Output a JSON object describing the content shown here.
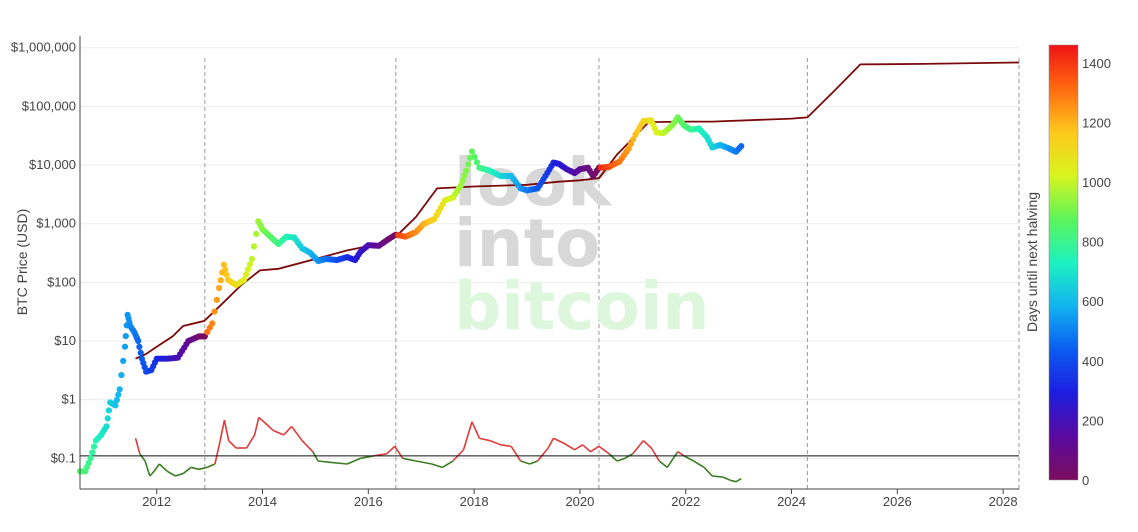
{
  "chart_data": {
    "type": "scatter",
    "ylabel": "BTC Price (USD)",
    "yscale": "log",
    "ylim": [
      0.03,
      1600000
    ],
    "xlim": [
      2010.55,
      2028.3
    ],
    "y_ticks": [
      {
        "value": 1000000,
        "label": "$1,000,000"
      },
      {
        "value": 100000,
        "label": "$100,000"
      },
      {
        "value": 10000,
        "label": "$10,000"
      },
      {
        "value": 1000,
        "label": "$1,000"
      },
      {
        "value": 100,
        "label": "$100"
      },
      {
        "value": 10,
        "label": "$10"
      },
      {
        "value": 1,
        "label": "$1"
      },
      {
        "value": 0.1,
        "label": "$0.1"
      }
    ],
    "x_ticks": [
      {
        "value": 2012,
        "label": "2012"
      },
      {
        "value": 2014,
        "label": "2014"
      },
      {
        "value": 2016,
        "label": "2016"
      },
      {
        "value": 2018,
        "label": "2018"
      },
      {
        "value": 2020,
        "label": "2020"
      },
      {
        "value": 2022,
        "label": "2022"
      },
      {
        "value": 2024,
        "label": "2024"
      },
      {
        "value": 2026,
        "label": "2026"
      },
      {
        "value": 2028,
        "label": "2028"
      }
    ],
    "halving_lines": [
      2012.91,
      2016.52,
      2020.36,
      2024.3,
      2028.3
    ],
    "oscillator_threshold": 0.11,
    "colorbar": {
      "title": "Days until next halving",
      "min": 0,
      "max": 1460,
      "ticks": [
        0,
        200,
        400,
        600,
        800,
        1000,
        1200,
        1400
      ],
      "colors": [
        "#7b0d5e",
        "#5a0aa0",
        "#1d1de0",
        "#0b5cf0",
        "#12b3f0",
        "#1df2c0",
        "#5df55a",
        "#d8f51d",
        "#ffc81d",
        "#ff6a10",
        "#f01313"
      ]
    },
    "price_series": [
      {
        "x": 2010.55,
        "y": 0.06
      },
      {
        "x": 2010.65,
        "y": 0.06
      },
      {
        "x": 2010.75,
        "y": 0.1
      },
      {
        "x": 2010.85,
        "y": 0.2
      },
      {
        "x": 2010.95,
        "y": 0.25
      },
      {
        "x": 2011.05,
        "y": 0.35
      },
      {
        "x": 2011.12,
        "y": 0.9
      },
      {
        "x": 2011.22,
        "y": 0.8
      },
      {
        "x": 2011.3,
        "y": 1.5
      },
      {
        "x": 2011.4,
        "y": 8
      },
      {
        "x": 2011.45,
        "y": 28
      },
      {
        "x": 2011.5,
        "y": 18
      },
      {
        "x": 2011.58,
        "y": 14
      },
      {
        "x": 2011.65,
        "y": 10
      },
      {
        "x": 2011.72,
        "y": 5
      },
      {
        "x": 2011.8,
        "y": 3
      },
      {
        "x": 2011.9,
        "y": 3.2
      },
      {
        "x": 2012.0,
        "y": 5
      },
      {
        "x": 2012.2,
        "y": 5
      },
      {
        "x": 2012.4,
        "y": 5.2
      },
      {
        "x": 2012.6,
        "y": 10
      },
      {
        "x": 2012.8,
        "y": 12
      },
      {
        "x": 2012.91,
        "y": 12
      },
      {
        "x": 2013.05,
        "y": 20
      },
      {
        "x": 2013.18,
        "y": 80
      },
      {
        "x": 2013.27,
        "y": 200
      },
      {
        "x": 2013.35,
        "y": 110
      },
      {
        "x": 2013.5,
        "y": 90
      },
      {
        "x": 2013.65,
        "y": 110
      },
      {
        "x": 2013.8,
        "y": 250
      },
      {
        "x": 2013.92,
        "y": 1100
      },
      {
        "x": 2014.0,
        "y": 800
      },
      {
        "x": 2014.15,
        "y": 600
      },
      {
        "x": 2014.3,
        "y": 450
      },
      {
        "x": 2014.45,
        "y": 600
      },
      {
        "x": 2014.6,
        "y": 580
      },
      {
        "x": 2014.75,
        "y": 380
      },
      {
        "x": 2014.9,
        "y": 320
      },
      {
        "x": 2015.05,
        "y": 230
      },
      {
        "x": 2015.2,
        "y": 250
      },
      {
        "x": 2015.4,
        "y": 240
      },
      {
        "x": 2015.6,
        "y": 270
      },
      {
        "x": 2015.75,
        "y": 240
      },
      {
        "x": 2015.85,
        "y": 330
      },
      {
        "x": 2016.0,
        "y": 430
      },
      {
        "x": 2016.2,
        "y": 420
      },
      {
        "x": 2016.4,
        "y": 560
      },
      {
        "x": 2016.52,
        "y": 650
      },
      {
        "x": 2016.7,
        "y": 600
      },
      {
        "x": 2016.9,
        "y": 720
      },
      {
        "x": 2017.05,
        "y": 1000
      },
      {
        "x": 2017.25,
        "y": 1200
      },
      {
        "x": 2017.45,
        "y": 2500
      },
      {
        "x": 2017.6,
        "y": 2800
      },
      {
        "x": 2017.75,
        "y": 4500
      },
      {
        "x": 2017.85,
        "y": 8000
      },
      {
        "x": 2017.96,
        "y": 17000
      },
      {
        "x": 2018.1,
        "y": 9000
      },
      {
        "x": 2018.3,
        "y": 8000
      },
      {
        "x": 2018.5,
        "y": 6500
      },
      {
        "x": 2018.7,
        "y": 6500
      },
      {
        "x": 2018.88,
        "y": 4000
      },
      {
        "x": 2019.0,
        "y": 3700
      },
      {
        "x": 2019.2,
        "y": 4000
      },
      {
        "x": 2019.35,
        "y": 6500
      },
      {
        "x": 2019.5,
        "y": 11000
      },
      {
        "x": 2019.6,
        "y": 10500
      },
      {
        "x": 2019.75,
        "y": 8500
      },
      {
        "x": 2019.9,
        "y": 7300
      },
      {
        "x": 2020.0,
        "y": 8500
      },
      {
        "x": 2020.15,
        "y": 9000
      },
      {
        "x": 2020.25,
        "y": 6500
      },
      {
        "x": 2020.36,
        "y": 9000
      },
      {
        "x": 2020.55,
        "y": 9300
      },
      {
        "x": 2020.75,
        "y": 11500
      },
      {
        "x": 2020.92,
        "y": 19000
      },
      {
        "x": 2021.05,
        "y": 33000
      },
      {
        "x": 2021.2,
        "y": 56000
      },
      {
        "x": 2021.35,
        "y": 58000
      },
      {
        "x": 2021.45,
        "y": 36000
      },
      {
        "x": 2021.58,
        "y": 35000
      },
      {
        "x": 2021.75,
        "y": 48000
      },
      {
        "x": 2021.85,
        "y": 65000
      },
      {
        "x": 2021.97,
        "y": 47000
      },
      {
        "x": 2022.1,
        "y": 40000
      },
      {
        "x": 2022.25,
        "y": 42000
      },
      {
        "x": 2022.4,
        "y": 30000
      },
      {
        "x": 2022.5,
        "y": 20000
      },
      {
        "x": 2022.65,
        "y": 22000
      },
      {
        "x": 2022.8,
        "y": 19500
      },
      {
        "x": 2022.95,
        "y": 16800
      },
      {
        "x": 2023.05,
        "y": 21000
      }
    ],
    "stock_to_flow_series": [
      {
        "x": 2011.6,
        "y": 5
      },
      {
        "x": 2011.8,
        "y": 6
      },
      {
        "x": 2012.0,
        "y": 8
      },
      {
        "x": 2012.3,
        "y": 12
      },
      {
        "x": 2012.5,
        "y": 18
      },
      {
        "x": 2012.9,
        "y": 22
      },
      {
        "x": 2013.2,
        "y": 40
      },
      {
        "x": 2013.6,
        "y": 90
      },
      {
        "x": 2013.95,
        "y": 160
      },
      {
        "x": 2014.3,
        "y": 170
      },
      {
        "x": 2015.0,
        "y": 250
      },
      {
        "x": 2015.6,
        "y": 350
      },
      {
        "x": 2016.2,
        "y": 450
      },
      {
        "x": 2016.52,
        "y": 600
      },
      {
        "x": 2016.9,
        "y": 1300
      },
      {
        "x": 2017.3,
        "y": 4000
      },
      {
        "x": 2018.0,
        "y": 4300
      },
      {
        "x": 2019.0,
        "y": 4600
      },
      {
        "x": 2019.6,
        "y": 5200
      },
      {
        "x": 2020.0,
        "y": 5500
      },
      {
        "x": 2020.36,
        "y": 6000
      },
      {
        "x": 2020.7,
        "y": 15000
      },
      {
        "x": 2021.3,
        "y": 54000
      },
      {
        "x": 2022.0,
        "y": 55000
      },
      {
        "x": 2022.5,
        "y": 55000
      },
      {
        "x": 2024.0,
        "y": 62000
      },
      {
        "x": 2024.3,
        "y": 65000
      },
      {
        "x": 2024.8,
        "y": 180000
      },
      {
        "x": 2025.3,
        "y": 520000
      },
      {
        "x": 2026.5,
        "y": 530000
      },
      {
        "x": 2028.3,
        "y": 560000
      }
    ],
    "oscillator_series": [
      {
        "x": 2011.6,
        "y": 0.22
      },
      {
        "x": 2011.68,
        "y": 0.12
      },
      {
        "x": 2011.78,
        "y": 0.09
      },
      {
        "x": 2011.87,
        "y": 0.05
      },
      {
        "x": 2011.95,
        "y": 0.06
      },
      {
        "x": 2012.05,
        "y": 0.08
      },
      {
        "x": 2012.2,
        "y": 0.06
      },
      {
        "x": 2012.35,
        "y": 0.05
      },
      {
        "x": 2012.5,
        "y": 0.055
      },
      {
        "x": 2012.65,
        "y": 0.07
      },
      {
        "x": 2012.8,
        "y": 0.065
      },
      {
        "x": 2012.95,
        "y": 0.07
      },
      {
        "x": 2013.1,
        "y": 0.08
      },
      {
        "x": 2013.2,
        "y": 0.2
      },
      {
        "x": 2013.28,
        "y": 0.45
      },
      {
        "x": 2013.36,
        "y": 0.2
      },
      {
        "x": 2013.5,
        "y": 0.15
      },
      {
        "x": 2013.7,
        "y": 0.15
      },
      {
        "x": 2013.85,
        "y": 0.25
      },
      {
        "x": 2013.93,
        "y": 0.5
      },
      {
        "x": 2014.05,
        "y": 0.4
      },
      {
        "x": 2014.2,
        "y": 0.3
      },
      {
        "x": 2014.4,
        "y": 0.25
      },
      {
        "x": 2014.55,
        "y": 0.35
      },
      {
        "x": 2014.75,
        "y": 0.2
      },
      {
        "x": 2014.95,
        "y": 0.13
      },
      {
        "x": 2015.05,
        "y": 0.09
      },
      {
        "x": 2015.3,
        "y": 0.085
      },
      {
        "x": 2015.6,
        "y": 0.08
      },
      {
        "x": 2015.85,
        "y": 0.1
      },
      {
        "x": 2016.1,
        "y": 0.11
      },
      {
        "x": 2016.35,
        "y": 0.12
      },
      {
        "x": 2016.5,
        "y": 0.16
      },
      {
        "x": 2016.65,
        "y": 0.1
      },
      {
        "x": 2016.9,
        "y": 0.09
      },
      {
        "x": 2017.2,
        "y": 0.08
      },
      {
        "x": 2017.4,
        "y": 0.07
      },
      {
        "x": 2017.6,
        "y": 0.09
      },
      {
        "x": 2017.8,
        "y": 0.14
      },
      {
        "x": 2017.96,
        "y": 0.42
      },
      {
        "x": 2018.1,
        "y": 0.22
      },
      {
        "x": 2018.3,
        "y": 0.2
      },
      {
        "x": 2018.5,
        "y": 0.17
      },
      {
        "x": 2018.7,
        "y": 0.16
      },
      {
        "x": 2018.88,
        "y": 0.09
      },
      {
        "x": 2019.05,
        "y": 0.08
      },
      {
        "x": 2019.2,
        "y": 0.09
      },
      {
        "x": 2019.4,
        "y": 0.15
      },
      {
        "x": 2019.5,
        "y": 0.22
      },
      {
        "x": 2019.7,
        "y": 0.18
      },
      {
        "x": 2019.9,
        "y": 0.14
      },
      {
        "x": 2020.05,
        "y": 0.17
      },
      {
        "x": 2020.2,
        "y": 0.13
      },
      {
        "x": 2020.36,
        "y": 0.16
      },
      {
        "x": 2020.55,
        "y": 0.12
      },
      {
        "x": 2020.7,
        "y": 0.09
      },
      {
        "x": 2020.85,
        "y": 0.1
      },
      {
        "x": 2021.0,
        "y": 0.12
      },
      {
        "x": 2021.2,
        "y": 0.2
      },
      {
        "x": 2021.35,
        "y": 0.15
      },
      {
        "x": 2021.5,
        "y": 0.09
      },
      {
        "x": 2021.65,
        "y": 0.07
      },
      {
        "x": 2021.85,
        "y": 0.13
      },
      {
        "x": 2021.97,
        "y": 0.11
      },
      {
        "x": 2022.15,
        "y": 0.09
      },
      {
        "x": 2022.35,
        "y": 0.07
      },
      {
        "x": 2022.5,
        "y": 0.05
      },
      {
        "x": 2022.7,
        "y": 0.048
      },
      {
        "x": 2022.85,
        "y": 0.042
      },
      {
        "x": 2022.95,
        "y": 0.04
      },
      {
        "x": 2023.05,
        "y": 0.045
      }
    ],
    "watermark": [
      "look",
      "into",
      "bitcoin"
    ]
  },
  "style": {
    "stock_to_flow_color": "#7a0a0a",
    "oscillator_above_color": "#e03a3a",
    "oscillator_below_color": "#3b7d22",
    "threshold_line_color": "#111111",
    "halving_line_color": "#9a9a9a",
    "grid_color": "#ececec",
    "watermark_colors": [
      "#d8d8d8",
      "#d8d8d8",
      "#dcf7dc"
    ]
  }
}
